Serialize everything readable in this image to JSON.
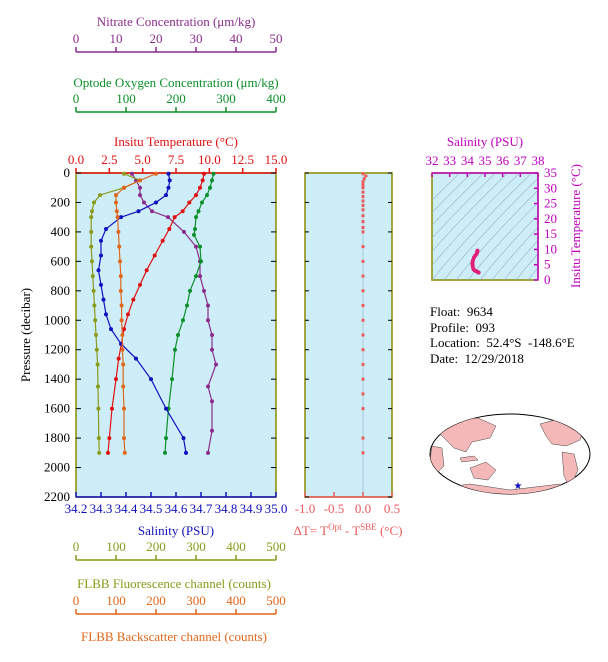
{
  "colors": {
    "nitrate": "#8b2c8b",
    "oxygen": "#0d8f2a",
    "temperature": "#e01010",
    "salinity": "#1010c0",
    "fluorescence": "#8a9a1a",
    "backscatter": "#e0661a",
    "ts_panel": "#c000c0",
    "delta_t": "#ee5a5a",
    "plot_bg": "#cdeef8",
    "frame": "#8b8b00"
  },
  "chart_data": [
    {
      "type": "line",
      "title": "",
      "ylabel": "Pressure (decibar)",
      "ylim": [
        2200,
        0
      ],
      "yticks": [
        "0",
        "200",
        "400",
        "600",
        "800",
        "1000",
        "1200",
        "1400",
        "1600",
        "1800",
        "2000",
        "2200"
      ],
      "axes": {
        "nitrate": {
          "label": "Nitrate Concentration (μm/kg)",
          "range": [
            0,
            50
          ],
          "ticks": [
            "0",
            "10",
            "20",
            "30",
            "40",
            "50"
          ]
        },
        "oxygen": {
          "label": "Optode Oxygen Concentration (μm/kg)",
          "range": [
            0,
            400
          ],
          "ticks": [
            "0",
            "100",
            "200",
            "300",
            "400"
          ]
        },
        "temperature": {
          "label": "Insitu Temperature (°C)",
          "range": [
            0,
            15
          ],
          "ticks": [
            "0.0",
            "2.5",
            "5.0",
            "7.5",
            "10.0",
            "12.5",
            "15.0"
          ]
        },
        "salinity": {
          "label": "Salinity (PSU)",
          "range": [
            34.2,
            35.0
          ],
          "ticks": [
            "34.2",
            "34.3",
            "34.4",
            "34.5",
            "34.6",
            "34.7",
            "34.8",
            "34.9",
            "35.0"
          ]
        },
        "fluorescence": {
          "label": "FLBB Fluorescence channel (counts)",
          "range": [
            0,
            500
          ],
          "ticks": [
            "0",
            "100",
            "200",
            "300",
            "400",
            "500"
          ]
        },
        "backscatter": {
          "label": "FLBB Backscatter channel (counts)",
          "range": [
            0,
            500
          ],
          "ticks": [
            "0",
            "100",
            "200",
            "300",
            "400",
            "500"
          ]
        }
      },
      "series": [
        {
          "name": "Nitrate Concentration",
          "axis": "nitrate",
          "color": "#8b2c8b",
          "x": [
            14,
            15,
            16,
            16,
            17,
            19,
            23,
            27,
            30,
            31,
            31,
            32,
            33,
            33,
            34,
            34,
            35,
            33,
            34,
            34,
            33
          ],
          "y": [
            5,
            50,
            100,
            150,
            200,
            260,
            300,
            400,
            500,
            600,
            700,
            800,
            900,
            1000,
            1100,
            1200,
            1300,
            1450,
            1550,
            1750,
            1900
          ]
        },
        {
          "name": "Optode Oxygen Concentration",
          "axis": "oxygen",
          "color": "#0d8f2a",
          "x": [
            275,
            272,
            268,
            262,
            252,
            245,
            240,
            238,
            236,
            248,
            250,
            240,
            228,
            222,
            214,
            204,
            198,
            192,
            185,
            180,
            178
          ],
          "y": [
            5,
            50,
            100,
            150,
            200,
            260,
            300,
            380,
            420,
            500,
            600,
            700,
            800,
            900,
            1000,
            1100,
            1200,
            1400,
            1600,
            1800,
            1900
          ]
        },
        {
          "name": "Insitu Temperature",
          "axis": "temperature",
          "color": "#e01010",
          "x": [
            9.6,
            9.5,
            9.3,
            9.0,
            8.5,
            8.0,
            7.4,
            7.0,
            6.5,
            5.9,
            5.3,
            4.8,
            4.3,
            3.9,
            3.6,
            3.4,
            3.2,
            3.0,
            2.7,
            2.5,
            2.4
          ],
          "y": [
            5,
            50,
            100,
            150,
            200,
            260,
            300,
            380,
            460,
            560,
            660,
            760,
            860,
            960,
            1060,
            1160,
            1260,
            1400,
            1600,
            1800,
            1900
          ]
        },
        {
          "name": "Salinity",
          "axis": "salinity",
          "color": "#1010c0",
          "x": [
            34.57,
            34.575,
            34.57,
            34.56,
            34.52,
            34.45,
            34.38,
            34.32,
            34.3,
            34.3,
            34.29,
            34.3,
            34.31,
            34.32,
            34.34,
            34.38,
            34.44,
            34.5,
            34.56,
            34.63,
            34.64
          ],
          "y": [
            5,
            50,
            100,
            150,
            200,
            260,
            300,
            380,
            460,
            560,
            660,
            760,
            860,
            960,
            1060,
            1160,
            1260,
            1400,
            1600,
            1800,
            1900
          ]
        },
        {
          "name": "FLBB Fluorescence channel",
          "axis": "fluorescence",
          "color": "#8a9a1a",
          "x": [
            120,
            160,
            120,
            60,
            45,
            40,
            38,
            38,
            38,
            40,
            42,
            44,
            46,
            48,
            50,
            52,
            54,
            55,
            56,
            57,
            58
          ],
          "y": [
            5,
            50,
            100,
            150,
            200,
            260,
            300,
            400,
            500,
            600,
            700,
            800,
            900,
            1000,
            1100,
            1200,
            1300,
            1450,
            1600,
            1800,
            1900
          ]
        },
        {
          "name": "FLBB Backscatter channel",
          "axis": "backscatter",
          "color": "#e0661a",
          "x": [
            200,
            160,
            120,
            100,
            100,
            102,
            104,
            106,
            108,
            110,
            112,
            112,
            114,
            114,
            116,
            116,
            118,
            118,
            120,
            120,
            122
          ],
          "y": [
            5,
            50,
            100,
            150,
            200,
            260,
            300,
            400,
            500,
            600,
            700,
            800,
            900,
            1000,
            1100,
            1200,
            1300,
            1450,
            1600,
            1800,
            1900
          ]
        }
      ]
    },
    {
      "type": "scatter",
      "xlabel": "ΔT= T^Opt - T^SBE (°C)",
      "xlim": [
        -1.0,
        0.5
      ],
      "xticks": [
        "-1.0",
        "-0.5",
        "0.0",
        "0.5"
      ],
      "ylim": [
        2200,
        0
      ],
      "series": [
        {
          "name": "ΔT",
          "color": "#ee5a5a",
          "x": [
            0.0,
            0.05,
            0.02,
            0.0,
            0.0,
            0.0,
            0.0,
            0.0,
            0.0,
            0.0,
            0.0,
            0.0,
            0.0,
            0.0,
            0.0,
            0.0,
            0.0,
            0.0,
            0.0,
            0.0,
            0.0,
            0.0,
            0.0,
            0.0,
            0.0,
            0.0,
            0.0,
            0.0,
            0.0
          ],
          "y": [
            5,
            20,
            40,
            60,
            80,
            100,
            130,
            160,
            190,
            220,
            250,
            290,
            330,
            370,
            400,
            500,
            600,
            700,
            800,
            900,
            1000,
            1100,
            1200,
            1300,
            1400,
            1500,
            1600,
            1800,
            1900
          ]
        }
      ]
    },
    {
      "type": "scatter",
      "xlabel": "Salinity (PSU)",
      "ylabel": "Insitu Temperature (°C)",
      "xlim": [
        32,
        38
      ],
      "xticks": [
        "32",
        "33",
        "34",
        "35",
        "36",
        "37",
        "38"
      ],
      "ylim": [
        0,
        35
      ],
      "yticks": [
        "0",
        "5",
        "10",
        "15",
        "20",
        "25",
        "30",
        "35"
      ],
      "series": [
        {
          "name": "T-S",
          "color": "#e0207a",
          "x": [
            34.57,
            34.575,
            34.55,
            34.52,
            34.45,
            34.38,
            34.32,
            34.3,
            34.29,
            34.3,
            34.31,
            34.34,
            34.4,
            34.5,
            34.58,
            34.64
          ],
          "y": [
            9.6,
            9.5,
            9.0,
            8.5,
            8.0,
            7.4,
            6.5,
            5.9,
            5.3,
            4.8,
            4.3,
            3.6,
            3.2,
            2.9,
            2.6,
            2.4
          ]
        }
      ]
    }
  ],
  "info": {
    "float": "Float:  9634",
    "profile": "Profile:  093",
    "location": "Location:  52.4°S  -148.6°E",
    "date": "Date:  12/29/2018"
  },
  "map": {
    "marker_icon": "star-icon",
    "marker_color": "#1010c0",
    "land_color": "#f4b8b8"
  }
}
